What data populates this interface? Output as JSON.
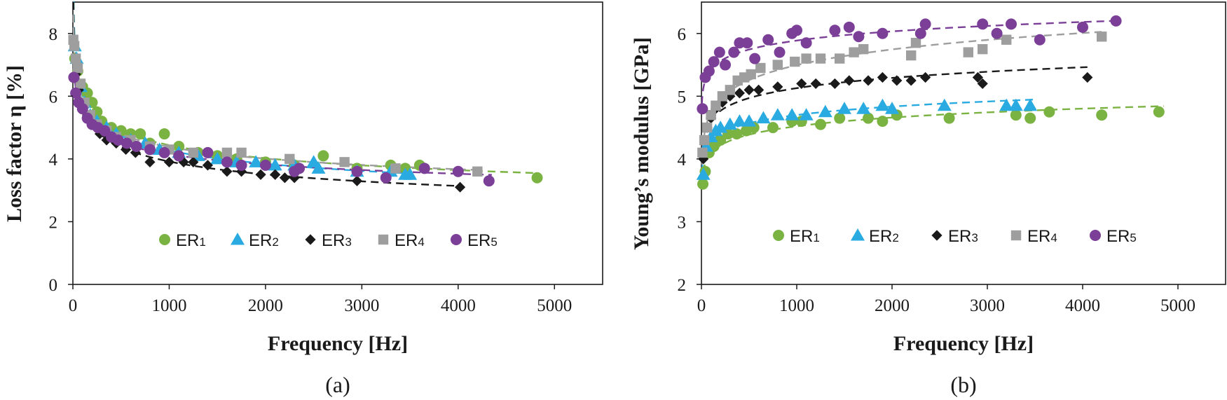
{
  "colors": {
    "ER1": "#7bb342",
    "ER2": "#29abe2",
    "ER3": "#1a1a1a",
    "ER4": "#9e9e9e",
    "ER5": "#7b3f98"
  },
  "chart_data": [
    {
      "type": "scatter",
      "panel_id": "a",
      "caption": "(a)",
      "xlabel": "Frequency [Hz]",
      "ylabel": "Loss factor η [%]",
      "xlim": [
        0,
        5500
      ],
      "ylim": [
        0,
        9
      ],
      "xticks": [
        "0",
        "1000",
        "2000",
        "3000",
        "4000",
        "5000"
      ],
      "yticks": [
        "0",
        "2",
        "4",
        "6",
        "8"
      ],
      "legend_position": "bottom-center",
      "series": [
        {
          "key": "ER1",
          "name": "ER",
          "sub": "1",
          "marker": "circle",
          "fit_end": 4800,
          "x": [
            20,
            50,
            100,
            150,
            200,
            250,
            300,
            400,
            500,
            600,
            700,
            800,
            950,
            1100,
            1300,
            1500,
            1700,
            2000,
            2300,
            2600,
            2950,
            3300,
            3450,
            3600,
            4820
          ],
          "y": [
            7.2,
            6.8,
            6.3,
            6.1,
            5.8,
            5.5,
            5.2,
            5.0,
            4.9,
            4.8,
            4.8,
            4.5,
            4.8,
            4.4,
            4.2,
            4.1,
            4.0,
            3.9,
            3.8,
            4.1,
            3.7,
            3.8,
            3.7,
            3.8,
            3.4
          ]
        },
        {
          "key": "ER2",
          "name": "ER",
          "sub": "2",
          "marker": "triangle",
          "fit_end": 3500,
          "x": [
            20,
            40,
            80,
            120,
            180,
            250,
            350,
            450,
            600,
            750,
            900,
            1100,
            1300,
            1500,
            1700,
            1900,
            2100,
            2300,
            2500,
            2550,
            2950,
            3300,
            3450,
            3500
          ],
          "y": [
            7.6,
            7.2,
            6.3,
            5.8,
            5.4,
            5.2,
            5.0,
            4.8,
            4.6,
            4.5,
            4.3,
            4.2,
            4.1,
            4.0,
            3.9,
            3.9,
            3.8,
            3.8,
            3.9,
            3.7,
            3.6,
            3.6,
            3.5,
            3.5
          ]
        },
        {
          "key": "ER3",
          "name": "ER",
          "sub": "3",
          "marker": "diamond",
          "fit_end": 4050,
          "x": [
            30,
            60,
            100,
            150,
            200,
            280,
            350,
            450,
            550,
            650,
            800,
            1000,
            1150,
            1250,
            1400,
            1600,
            1750,
            1950,
            2100,
            2200,
            2300,
            2950,
            4020
          ],
          "y": [
            6.7,
            6.2,
            5.7,
            5.4,
            5.1,
            4.8,
            4.6,
            4.5,
            4.3,
            4.2,
            3.9,
            3.9,
            3.9,
            3.9,
            3.8,
            3.6,
            3.6,
            3.5,
            3.5,
            3.4,
            3.4,
            3.3,
            3.1
          ]
        },
        {
          "key": "ER4",
          "name": "ER",
          "sub": "4",
          "marker": "square",
          "fit_end": 4250,
          "x": [
            5,
            15,
            30,
            50,
            80,
            120,
            180,
            250,
            350,
            450,
            600,
            800,
            1000,
            1250,
            1600,
            1750,
            2250,
            2820,
            3350,
            4200
          ],
          "y": [
            7.8,
            7.6,
            7.2,
            6.9,
            6.4,
            5.8,
            5.4,
            5.1,
            4.9,
            4.7,
            4.6,
            4.4,
            4.3,
            4.2,
            4.2,
            4.2,
            4.0,
            3.9,
            3.7,
            3.6
          ]
        },
        {
          "key": "ER5",
          "name": "ER",
          "sub": "5",
          "marker": "circle",
          "fit_end": 4350,
          "x": [
            10,
            30,
            60,
            100,
            150,
            200,
            260,
            330,
            400,
            470,
            560,
            660,
            800,
            950,
            1100,
            1400,
            1600,
            1750,
            2000,
            2300,
            2350,
            2950,
            3250,
            3650,
            4000,
            4320
          ],
          "y": [
            6.6,
            6.1,
            5.8,
            5.6,
            5.3,
            5.1,
            5.0,
            4.9,
            4.7,
            4.6,
            4.5,
            4.4,
            4.3,
            4.2,
            4.1,
            4.2,
            3.9,
            3.8,
            3.8,
            3.6,
            3.7,
            3.6,
            3.4,
            3.7,
            3.6,
            3.3
          ]
        }
      ]
    },
    {
      "type": "scatter",
      "panel_id": "b",
      "caption": "(b)",
      "xlabel": "Frequency [Hz]",
      "ylabel": "Young’s modulus [GPa]",
      "xlim": [
        0,
        5500
      ],
      "ylim": [
        2,
        6.5
      ],
      "xticks": [
        "0",
        "1000",
        "2000",
        "3000",
        "4000",
        "5000"
      ],
      "yticks": [
        "2",
        "3",
        "4",
        "5",
        "6"
      ],
      "legend_position": "bottom-center",
      "series": [
        {
          "key": "ER1",
          "name": "ER",
          "sub": "1",
          "marker": "circle",
          "fit_end": 4850,
          "x": [
            15,
            40,
            80,
            130,
            200,
            280,
            370,
            470,
            550,
            750,
            950,
            1050,
            1250,
            1450,
            1750,
            1900,
            2050,
            2600,
            3300,
            3450,
            3650,
            4200,
            4800
          ],
          "y": [
            3.6,
            3.8,
            4.1,
            4.2,
            4.3,
            4.4,
            4.4,
            4.45,
            4.5,
            4.5,
            4.6,
            4.6,
            4.55,
            4.65,
            4.65,
            4.6,
            4.7,
            4.65,
            4.7,
            4.65,
            4.75,
            4.7,
            4.75
          ]
        },
        {
          "key": "ER2",
          "name": "ER",
          "sub": "2",
          "marker": "triangle",
          "fit_end": 3500,
          "x": [
            20,
            50,
            100,
            150,
            200,
            300,
            400,
            500,
            650,
            800,
            950,
            1100,
            1300,
            1500,
            1700,
            1900,
            2000,
            2550,
            3200,
            3300,
            3450
          ],
          "y": [
            3.75,
            4.2,
            4.35,
            4.45,
            4.5,
            4.55,
            4.6,
            4.6,
            4.65,
            4.7,
            4.7,
            4.7,
            4.75,
            4.8,
            4.8,
            4.85,
            4.8,
            4.85,
            4.85,
            4.85,
            4.85
          ]
        },
        {
          "key": "ER3",
          "name": "ER",
          "sub": "3",
          "marker": "diamond",
          "fit_end": 4050,
          "x": [
            20,
            60,
            100,
            150,
            220,
            300,
            400,
            500,
            600,
            800,
            1050,
            1200,
            1400,
            1550,
            1750,
            1900,
            2050,
            2200,
            2350,
            2900,
            2950,
            4050
          ],
          "y": [
            4.0,
            4.5,
            4.65,
            4.8,
            4.9,
            5.0,
            5.05,
            5.1,
            5.1,
            5.15,
            5.2,
            5.2,
            5.2,
            5.25,
            5.25,
            5.3,
            5.25,
            5.25,
            5.3,
            5.3,
            5.2,
            5.3
          ]
        },
        {
          "key": "ER4",
          "name": "ER",
          "sub": "4",
          "marker": "square",
          "fit_end": 4200,
          "x": [
            10,
            30,
            60,
            100,
            150,
            220,
            300,
            380,
            450,
            520,
            620,
            800,
            980,
            1100,
            1250,
            1450,
            1600,
            1700,
            2200,
            2250,
            2800,
            2950,
            3200,
            4200
          ],
          "y": [
            4.1,
            4.3,
            4.5,
            4.7,
            4.85,
            5.0,
            5.1,
            5.25,
            5.3,
            5.35,
            5.45,
            5.5,
            5.55,
            5.6,
            5.6,
            5.6,
            5.7,
            5.75,
            5.65,
            5.85,
            5.7,
            5.75,
            5.9,
            5.95
          ]
        },
        {
          "key": "ER5",
          "name": "ER",
          "sub": "5",
          "marker": "circle",
          "fit_end": 4350,
          "x": [
            10,
            40,
            80,
            130,
            190,
            250,
            340,
            400,
            480,
            560,
            700,
            820,
            950,
            1000,
            1100,
            1400,
            1550,
            1650,
            1900,
            2300,
            2350,
            2950,
            3100,
            3250,
            3550,
            4000,
            4350
          ],
          "y": [
            4.8,
            5.3,
            5.4,
            5.55,
            5.7,
            5.5,
            5.7,
            5.85,
            5.85,
            5.6,
            5.9,
            5.7,
            6.0,
            6.05,
            5.85,
            6.05,
            6.1,
            5.95,
            6.0,
            6.0,
            6.15,
            6.15,
            6.0,
            6.15,
            5.9,
            6.1,
            6.2
          ]
        }
      ]
    }
  ]
}
